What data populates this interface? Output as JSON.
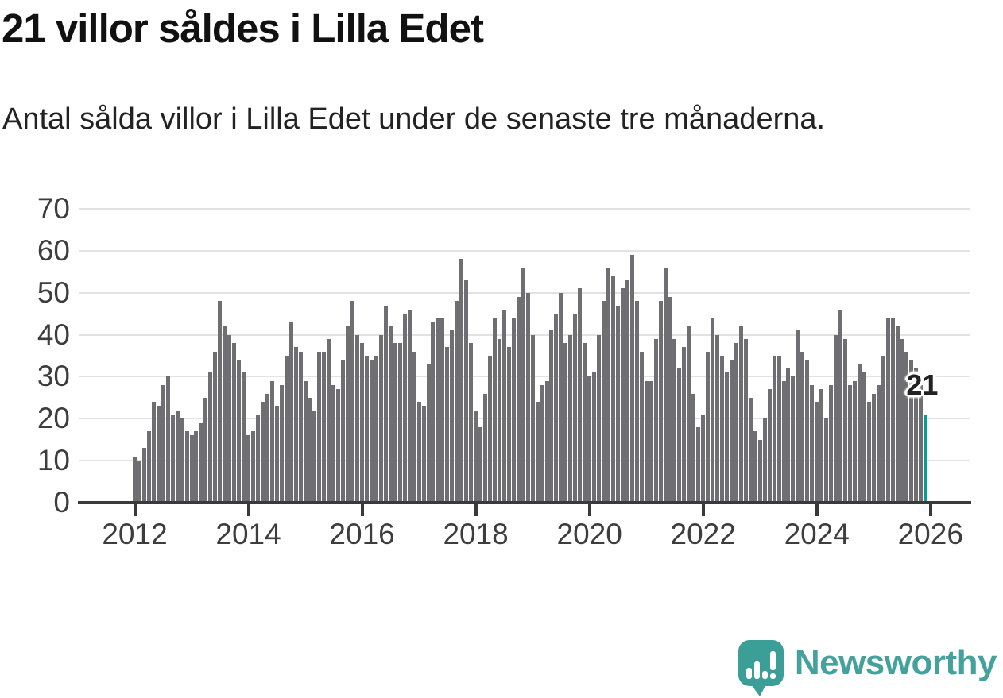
{
  "header": {
    "title": "21 villor såldes i Lilla Edet",
    "subtitle": "Antal sålda villor i Lilla Edet under de senaste tre månaderna."
  },
  "chart_data": {
    "type": "bar",
    "title": "21 villor såldes i Lilla Edet",
    "xlabel": "",
    "ylabel": "",
    "start_month": "2012-01",
    "interval": "monthly",
    "values": [
      11,
      10,
      13,
      17,
      24,
      23,
      28,
      30,
      21,
      22,
      20,
      17,
      16,
      17,
      19,
      25,
      31,
      36,
      48,
      42,
      40,
      38,
      34,
      31,
      16,
      17,
      21,
      24,
      26,
      29,
      23,
      28,
      35,
      43,
      37,
      36,
      29,
      25,
      22,
      36,
      36,
      39,
      28,
      27,
      34,
      42,
      48,
      40,
      38,
      35,
      34,
      35,
      40,
      47,
      42,
      38,
      38,
      45,
      46,
      36,
      24,
      23,
      33,
      43,
      44,
      44,
      37,
      41,
      48,
      58,
      53,
      38,
      22,
      18,
      26,
      35,
      44,
      39,
      46,
      37,
      44,
      49,
      56,
      50,
      40,
      24,
      28,
      29,
      41,
      45,
      50,
      38,
      40,
      45,
      51,
      38,
      30,
      31,
      40,
      48,
      56,
      54,
      47,
      51,
      53,
      59,
      48,
      36,
      29,
      29,
      39,
      48,
      56,
      49,
      39,
      32,
      37,
      42,
      26,
      18,
      21,
      36,
      44,
      40,
      35,
      31,
      34,
      38,
      42,
      39,
      25,
      17,
      15,
      20,
      27,
      35,
      35,
      29,
      32,
      30,
      41,
      36,
      34,
      28,
      24,
      27,
      20,
      28,
      40,
      46,
      39,
      28,
      29,
      33,
      31,
      24,
      26,
      28,
      35,
      44,
      44,
      42,
      39,
      36,
      34,
      32,
      28,
      21
    ],
    "highlight_index": 167,
    "highlight_value": 21,
    "annotation": "21",
    "yticks": [
      0,
      10,
      20,
      30,
      40,
      50,
      60,
      70
    ],
    "ylim": [
      0,
      70
    ],
    "xticks": [
      "2012",
      "2014",
      "2016",
      "2018",
      "2020",
      "2022",
      "2024",
      "2026"
    ],
    "grid": true,
    "legend": "none",
    "bar_color": "#6e6e73",
    "highlight_color": "#00a097"
  },
  "colors": {
    "background": "#ffffff",
    "title_text": "#111111",
    "subtitle_text": "#222222",
    "axis_text": "#3d3d3d",
    "gridline": "#e2e2e2",
    "axis_line": "#3a3a3a",
    "bar_gray": "#6e6e73",
    "bar_teal": "#00a097",
    "brand_teal": "#45a19b"
  },
  "footer": {
    "brand": "Newsworthy",
    "logo_icon": "newsworthy-speech-bubble-barchart-icon"
  }
}
